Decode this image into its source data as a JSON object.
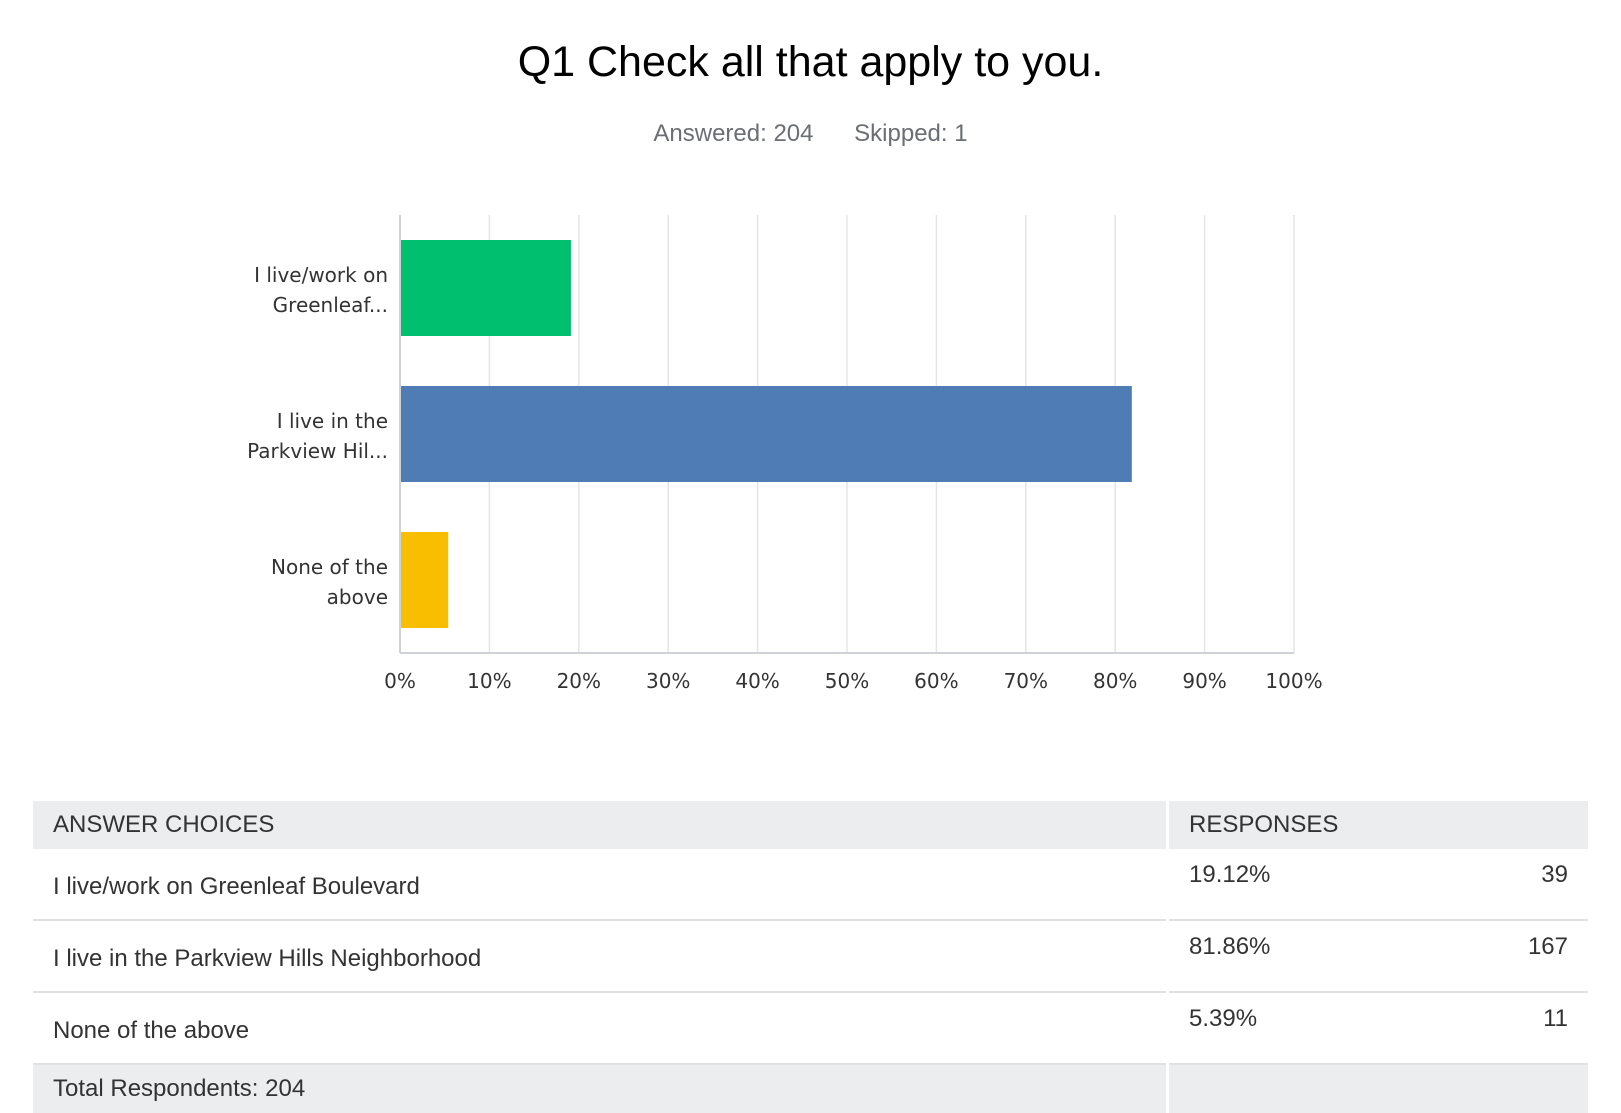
{
  "header": {
    "title": "Q1 Check all that apply to you.",
    "answered": "Answered: 204",
    "skipped": "Skipped: 1"
  },
  "chart_data": {
    "type": "bar",
    "orientation": "horizontal",
    "categories": [
      "I live/work on Greenleaf...",
      "I live in the Parkview Hil...",
      "None of the above"
    ],
    "category_lines": [
      [
        "I live/work on",
        "Greenleaf..."
      ],
      [
        "I live in the",
        "Parkview Hil..."
      ],
      [
        "None of the",
        "above"
      ]
    ],
    "values": [
      19.12,
      81.86,
      5.39
    ],
    "colors": [
      "#00bf6f",
      "#507cb6",
      "#f9be00"
    ],
    "xlim": [
      0,
      100
    ],
    "xticks": [
      "0%",
      "10%",
      "20%",
      "30%",
      "40%",
      "50%",
      "60%",
      "70%",
      "80%",
      "90%",
      "100%"
    ],
    "grid": true
  },
  "table": {
    "headers": {
      "answer": "ANSWER CHOICES",
      "responses": "RESPONSES"
    },
    "rows": [
      {
        "answer": "I live/work on Greenleaf Boulevard",
        "percent": "19.12%",
        "count": "39"
      },
      {
        "answer": "I live in the Parkview Hills Neighborhood",
        "percent": "81.86%",
        "count": "167"
      },
      {
        "answer": "None of the above",
        "percent": "5.39%",
        "count": "11"
      }
    ],
    "total": "Total Respondents: 204"
  }
}
